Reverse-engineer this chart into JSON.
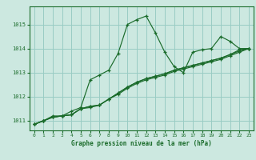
{
  "bg_color": "#cce8e0",
  "grid_color": "#99ccc4",
  "line_color": "#1a6b2a",
  "spine_color": "#1a6b2a",
  "title": "Graphe pression niveau de la mer (hPa)",
  "xlim": [
    -0.5,
    23.5
  ],
  "ylim": [
    1010.6,
    1015.75
  ],
  "yticks": [
    1011,
    1012,
    1013,
    1014,
    1015
  ],
  "xticks": [
    0,
    1,
    2,
    3,
    4,
    5,
    6,
    7,
    8,
    9,
    10,
    11,
    12,
    13,
    14,
    15,
    16,
    17,
    18,
    19,
    20,
    21,
    22,
    23
  ],
  "series": [
    [
      1010.85,
      1011.0,
      1011.2,
      1011.2,
      1011.4,
      1011.55,
      1012.7,
      1012.9,
      1013.1,
      1013.8,
      1015.0,
      1015.2,
      1015.35,
      1014.65,
      1013.85,
      1013.25,
      1013.0,
      1013.85,
      1013.95,
      1014.0,
      1014.5,
      1014.3,
      1014.0,
      1014.0
    ],
    [
      1010.85,
      1011.0,
      1011.15,
      1011.2,
      1011.25,
      1011.5,
      1011.6,
      1011.65,
      1011.9,
      1012.15,
      1012.4,
      1012.6,
      1012.75,
      1012.85,
      1012.95,
      1013.1,
      1013.2,
      1013.3,
      1013.4,
      1013.5,
      1013.6,
      1013.75,
      1013.9,
      1014.0
    ],
    [
      1010.85,
      1011.0,
      1011.15,
      1011.2,
      1011.25,
      1011.5,
      1011.6,
      1011.65,
      1011.9,
      1012.15,
      1012.4,
      1012.6,
      1012.75,
      1012.85,
      1012.95,
      1013.1,
      1013.2,
      1013.3,
      1013.4,
      1013.5,
      1013.6,
      1013.75,
      1013.95,
      1014.0
    ],
    [
      1010.85,
      1011.0,
      1011.15,
      1011.2,
      1011.25,
      1011.5,
      1011.55,
      1011.65,
      1011.9,
      1012.1,
      1012.35,
      1012.55,
      1012.7,
      1012.8,
      1012.9,
      1013.05,
      1013.15,
      1013.25,
      1013.35,
      1013.45,
      1013.55,
      1013.7,
      1013.85,
      1014.0
    ]
  ]
}
